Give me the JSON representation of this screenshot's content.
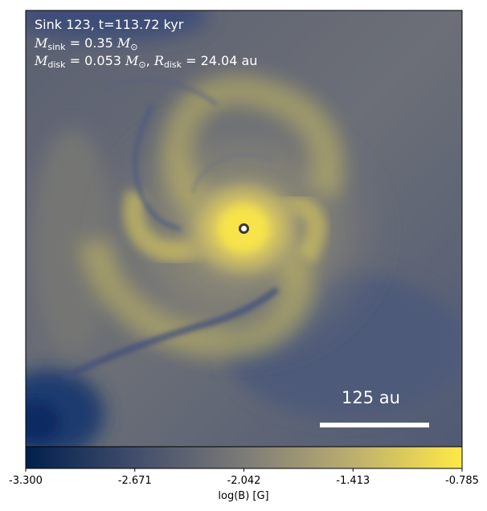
{
  "header": {
    "line1": "Sink 123, t=113.72 kyr",
    "m_sink": {
      "symbol": "M",
      "subscript": "sink",
      "value": "= 0.35",
      "unit_symbol": "M",
      "unit_subscript": "⊙"
    },
    "m_disk": {
      "symbol": "M",
      "subscript": "disk",
      "value": "= 0.053",
      "unit_symbol": "M",
      "unit_subscript": "⊙",
      "separator": ",",
      "r_symbol": "R",
      "r_subscript": "disk",
      "r_value": "= 24.04 au"
    }
  },
  "scalebar": {
    "label": "125 au"
  },
  "colorbar": {
    "min": "-3.300",
    "max": "-0.785",
    "ticks": [
      "-3.300",
      "-2.671",
      "-2.042",
      "-1.413",
      "-0.785"
    ],
    "label": "log(B) [G]",
    "colors": [
      "#00204d",
      "#414d6b",
      "#7c7b78",
      "#bcaf6f",
      "#ffea46"
    ]
  },
  "colors": {
    "background_low": "#3b4a72",
    "field_mid": "#8d8c7c",
    "field_high": "#f2dd52",
    "sink_marker": "#ffffff"
  }
}
